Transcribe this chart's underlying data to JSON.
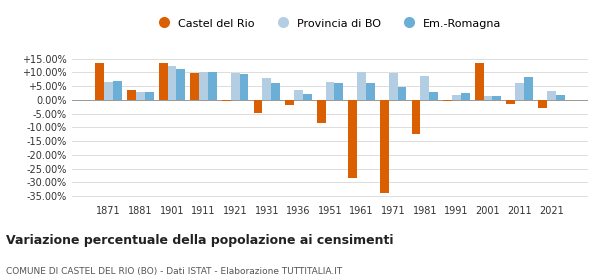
{
  "years": [
    1871,
    1881,
    1901,
    1911,
    1921,
    1931,
    1936,
    1951,
    1961,
    1971,
    1981,
    1991,
    2001,
    2011,
    2021
  ],
  "castel_del_rio": [
    13.5,
    3.5,
    13.5,
    9.8,
    -0.5,
    -4.8,
    -2.0,
    -8.5,
    -28.5,
    -34.0,
    -12.5,
    -0.5,
    13.5,
    -1.5,
    -3.0
  ],
  "provincia_bo": [
    6.5,
    3.0,
    12.5,
    10.2,
    9.8,
    8.0,
    3.5,
    6.5,
    10.2,
    9.8,
    8.8,
    1.8,
    1.5,
    6.2,
    3.2
  ],
  "em_romagna": [
    6.8,
    2.8,
    11.2,
    10.2,
    9.5,
    6.2,
    2.0,
    6.2,
    6.2,
    4.8,
    2.8,
    2.5,
    1.5,
    8.2,
    1.8
  ],
  "color_castel": "#d95f02",
  "color_prov": "#b3cde3",
  "color_em": "#6baed6",
  "title": "Variazione percentuale della popolazione ai censimenti",
  "subtitle": "COMUNE DI CASTEL DEL RIO (BO) - Dati ISTAT - Elaborazione TUTTITALIA.IT",
  "legend_labels": [
    "Castel del Rio",
    "Provincia di BO",
    "Em.-Romagna"
  ],
  "ylim": [
    -37,
    18
  ],
  "yticks": [
    -35,
    -30,
    -25,
    -20,
    -15,
    -10,
    -5,
    0,
    5,
    10,
    15
  ],
  "ytick_labels": [
    "-35.00%",
    "-30.00%",
    "-25.00%",
    "-20.00%",
    "-15.00%",
    "-10.00%",
    "-5.00%",
    "0.00%",
    "+5.00%",
    "+10.00%",
    "+15.00%"
  ],
  "bar_width": 0.28,
  "background": "#ffffff",
  "grid_color": "#dddddd"
}
